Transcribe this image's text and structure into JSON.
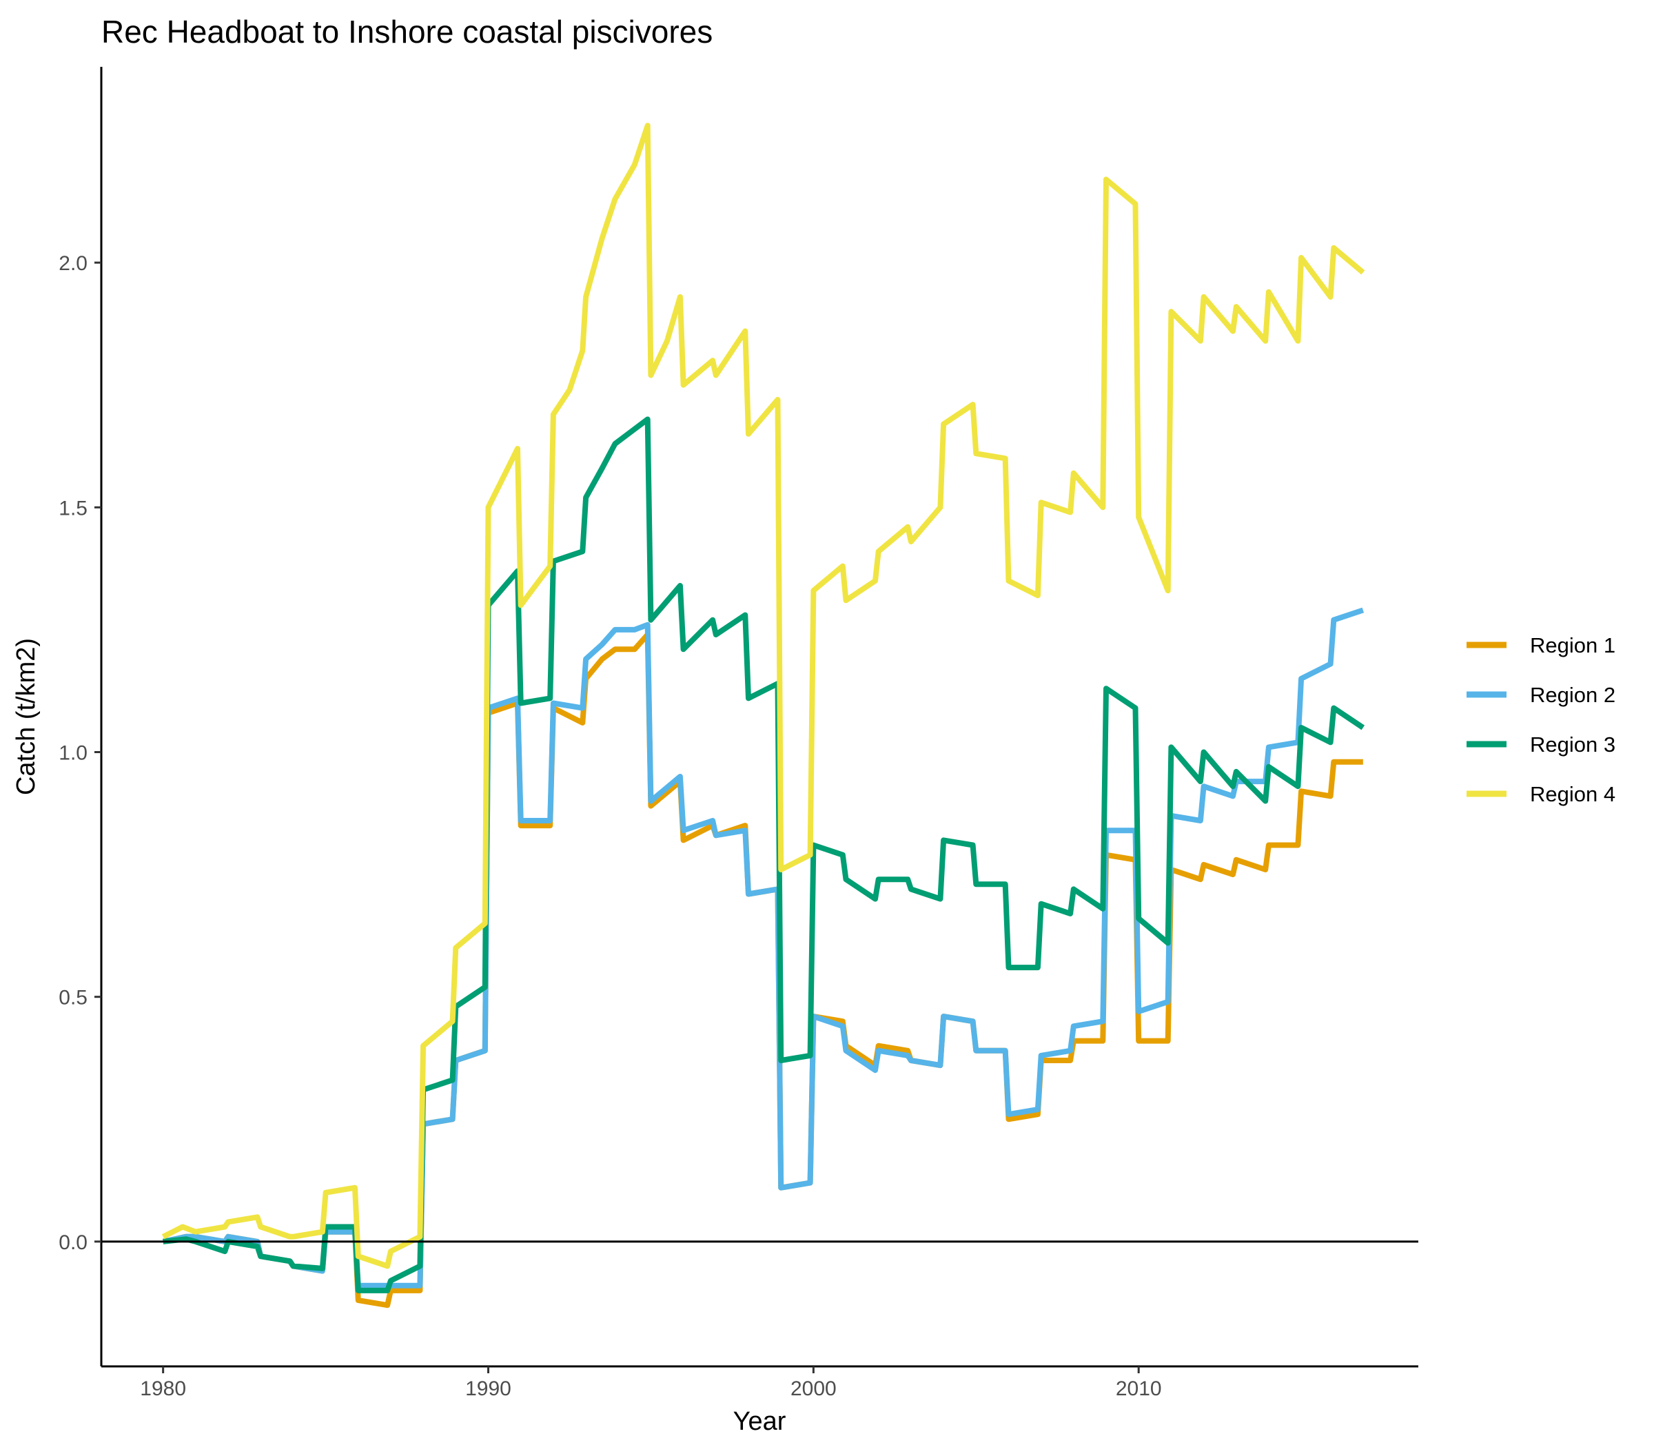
{
  "chart_data": {
    "type": "line",
    "title": "Rec Headboat to Inshore coastal piscivores",
    "xlabel": "Year",
    "ylabel": "Catch (t/km2)",
    "xlim": [
      1978.1,
      2018.6
    ],
    "ylim": [
      -0.255,
      2.4
    ],
    "x_ticks": [
      1980,
      1990,
      2000,
      2010
    ],
    "x_tick_labels": [
      "1980",
      "1990",
      "2000",
      "2010"
    ],
    "y_ticks": [
      0.0,
      0.5,
      1.0,
      1.5,
      2.0
    ],
    "y_tick_labels": [
      "0.0",
      "0.5",
      "1.0",
      "1.5",
      "2.0"
    ],
    "zero_line": true,
    "grid": false,
    "legend_position": "right",
    "series": [
      {
        "name": "Region 1",
        "color": "#E69F00",
        "points": [
          [
            1980.0,
            0.0
          ],
          [
            1980.7,
            0.01
          ],
          [
            1981.0,
            0.01
          ],
          [
            1981.9,
            0.0
          ],
          [
            1982.0,
            0.01
          ],
          [
            1982.9,
            0.0
          ],
          [
            1983.0,
            -0.03
          ],
          [
            1983.9,
            -0.04
          ],
          [
            1984.0,
            -0.05
          ],
          [
            1984.9,
            -0.06
          ],
          [
            1985.0,
            0.02
          ],
          [
            1985.9,
            0.02
          ],
          [
            1986.0,
            -0.12
          ],
          [
            1986.9,
            -0.13
          ],
          [
            1987.0,
            -0.1
          ],
          [
            1987.9,
            -0.1
          ],
          [
            1988.0,
            0.24
          ],
          [
            1988.9,
            0.25
          ],
          [
            1989.0,
            0.37
          ],
          [
            1989.9,
            0.39
          ],
          [
            1990.0,
            1.08
          ],
          [
            1990.9,
            1.1
          ],
          [
            1991.0,
            0.85
          ],
          [
            1991.9,
            0.85
          ],
          [
            1992.0,
            1.09
          ],
          [
            1992.9,
            1.06
          ],
          [
            1993.0,
            1.15
          ],
          [
            1993.5,
            1.19
          ],
          [
            1993.9,
            1.21
          ],
          [
            1994.5,
            1.21
          ],
          [
            1994.9,
            1.24
          ],
          [
            1995.0,
            0.89
          ],
          [
            1995.9,
            0.94
          ],
          [
            1996.0,
            0.82
          ],
          [
            1996.9,
            0.85
          ],
          [
            1997.0,
            0.83
          ],
          [
            1997.9,
            0.85
          ],
          [
            1998.0,
            0.71
          ],
          [
            1998.9,
            0.72
          ],
          [
            1999.0,
            0.11
          ],
          [
            1999.9,
            0.12
          ],
          [
            2000.0,
            0.46
          ],
          [
            2000.9,
            0.45
          ],
          [
            2001.0,
            0.4
          ],
          [
            2001.9,
            0.36
          ],
          [
            2002.0,
            0.4
          ],
          [
            2002.9,
            0.39
          ],
          [
            2003.0,
            0.37
          ],
          [
            2003.9,
            0.36
          ],
          [
            2004.0,
            0.46
          ],
          [
            2004.9,
            0.45
          ],
          [
            2005.0,
            0.39
          ],
          [
            2005.9,
            0.39
          ],
          [
            2006.0,
            0.25
          ],
          [
            2006.9,
            0.26
          ],
          [
            2007.0,
            0.37
          ],
          [
            2007.9,
            0.37
          ],
          [
            2008.0,
            0.41
          ],
          [
            2008.9,
            0.41
          ],
          [
            2009.0,
            0.79
          ],
          [
            2009.9,
            0.78
          ],
          [
            2010.0,
            0.41
          ],
          [
            2010.9,
            0.41
          ],
          [
            2011.0,
            0.76
          ],
          [
            2011.9,
            0.74
          ],
          [
            2012.0,
            0.77
          ],
          [
            2012.9,
            0.75
          ],
          [
            2013.0,
            0.78
          ],
          [
            2013.9,
            0.76
          ],
          [
            2014.0,
            0.81
          ],
          [
            2014.9,
            0.81
          ],
          [
            2015.0,
            0.92
          ],
          [
            2015.9,
            0.91
          ],
          [
            2016.0,
            0.98
          ],
          [
            2016.9,
            0.98
          ]
        ]
      },
      {
        "name": "Region 2",
        "color": "#56B4E9",
        "points": [
          [
            1980.0,
            0.0
          ],
          [
            1980.7,
            0.01
          ],
          [
            1981.0,
            0.01
          ],
          [
            1981.9,
            0.0
          ],
          [
            1982.0,
            0.01
          ],
          [
            1982.9,
            0.0
          ],
          [
            1983.0,
            -0.03
          ],
          [
            1983.9,
            -0.04
          ],
          [
            1984.0,
            -0.05
          ],
          [
            1984.9,
            -0.06
          ],
          [
            1985.0,
            0.02
          ],
          [
            1985.9,
            0.02
          ],
          [
            1986.0,
            -0.09
          ],
          [
            1986.9,
            -0.09
          ],
          [
            1987.0,
            -0.09
          ],
          [
            1987.9,
            -0.09
          ],
          [
            1988.0,
            0.24
          ],
          [
            1988.9,
            0.25
          ],
          [
            1989.0,
            0.37
          ],
          [
            1989.9,
            0.39
          ],
          [
            1990.0,
            1.09
          ],
          [
            1990.9,
            1.11
          ],
          [
            1991.0,
            0.86
          ],
          [
            1991.9,
            0.86
          ],
          [
            1992.0,
            1.1
          ],
          [
            1992.9,
            1.09
          ],
          [
            1993.0,
            1.19
          ],
          [
            1993.5,
            1.22
          ],
          [
            1993.9,
            1.25
          ],
          [
            1994.5,
            1.25
          ],
          [
            1994.9,
            1.26
          ],
          [
            1995.0,
            0.9
          ],
          [
            1995.9,
            0.95
          ],
          [
            1996.0,
            0.84
          ],
          [
            1996.9,
            0.86
          ],
          [
            1997.0,
            0.83
          ],
          [
            1997.9,
            0.84
          ],
          [
            1998.0,
            0.71
          ],
          [
            1998.9,
            0.72
          ],
          [
            1999.0,
            0.11
          ],
          [
            1999.9,
            0.12
          ],
          [
            2000.0,
            0.46
          ],
          [
            2000.9,
            0.44
          ],
          [
            2001.0,
            0.39
          ],
          [
            2001.9,
            0.35
          ],
          [
            2002.0,
            0.39
          ],
          [
            2002.9,
            0.38
          ],
          [
            2003.0,
            0.37
          ],
          [
            2003.9,
            0.36
          ],
          [
            2004.0,
            0.46
          ],
          [
            2004.9,
            0.45
          ],
          [
            2005.0,
            0.39
          ],
          [
            2005.9,
            0.39
          ],
          [
            2006.0,
            0.26
          ],
          [
            2006.9,
            0.27
          ],
          [
            2007.0,
            0.38
          ],
          [
            2007.9,
            0.39
          ],
          [
            2008.0,
            0.44
          ],
          [
            2008.9,
            0.45
          ],
          [
            2009.0,
            0.84
          ],
          [
            2009.9,
            0.84
          ],
          [
            2010.0,
            0.47
          ],
          [
            2010.9,
            0.49
          ],
          [
            2011.0,
            0.87
          ],
          [
            2011.9,
            0.86
          ],
          [
            2012.0,
            0.93
          ],
          [
            2012.9,
            0.91
          ],
          [
            2013.0,
            0.94
          ],
          [
            2013.9,
            0.94
          ],
          [
            2014.0,
            1.01
          ],
          [
            2014.9,
            1.02
          ],
          [
            2015.0,
            1.15
          ],
          [
            2015.9,
            1.18
          ],
          [
            2016.0,
            1.27
          ],
          [
            2016.9,
            1.29
          ]
        ]
      },
      {
        "name": "Region 3",
        "color": "#009E73",
        "points": [
          [
            1980.0,
            0.0
          ],
          [
            1980.7,
            0.005
          ],
          [
            1981.0,
            0.0
          ],
          [
            1981.9,
            -0.02
          ],
          [
            1982.0,
            0.0
          ],
          [
            1982.9,
            -0.01
          ],
          [
            1983.0,
            -0.03
          ],
          [
            1983.9,
            -0.04
          ],
          [
            1984.0,
            -0.05
          ],
          [
            1984.9,
            -0.055
          ],
          [
            1985.0,
            0.03
          ],
          [
            1985.9,
            0.03
          ],
          [
            1986.0,
            -0.1
          ],
          [
            1986.9,
            -0.1
          ],
          [
            1987.0,
            -0.08
          ],
          [
            1987.9,
            -0.05
          ],
          [
            1988.0,
            0.31
          ],
          [
            1988.9,
            0.33
          ],
          [
            1989.0,
            0.48
          ],
          [
            1989.9,
            0.52
          ],
          [
            1990.0,
            1.3
          ],
          [
            1990.9,
            1.37
          ],
          [
            1991.0,
            1.1
          ],
          [
            1991.9,
            1.11
          ],
          [
            1992.0,
            1.39
          ],
          [
            1992.9,
            1.41
          ],
          [
            1993.0,
            1.52
          ],
          [
            1993.5,
            1.58
          ],
          [
            1993.9,
            1.63
          ],
          [
            1994.5,
            1.66
          ],
          [
            1994.9,
            1.68
          ],
          [
            1995.0,
            1.27
          ],
          [
            1995.9,
            1.34
          ],
          [
            1996.0,
            1.21
          ],
          [
            1996.9,
            1.27
          ],
          [
            1997.0,
            1.24
          ],
          [
            1997.9,
            1.28
          ],
          [
            1998.0,
            1.11
          ],
          [
            1998.9,
            1.14
          ],
          [
            1999.0,
            0.37
          ],
          [
            1999.9,
            0.38
          ],
          [
            2000.0,
            0.81
          ],
          [
            2000.9,
            0.79
          ],
          [
            2001.0,
            0.74
          ],
          [
            2001.9,
            0.7
          ],
          [
            2002.0,
            0.74
          ],
          [
            2002.9,
            0.74
          ],
          [
            2003.0,
            0.72
          ],
          [
            2003.9,
            0.7
          ],
          [
            2004.0,
            0.82
          ],
          [
            2004.9,
            0.81
          ],
          [
            2005.0,
            0.73
          ],
          [
            2005.9,
            0.73
          ],
          [
            2006.0,
            0.56
          ],
          [
            2006.9,
            0.56
          ],
          [
            2007.0,
            0.69
          ],
          [
            2007.9,
            0.67
          ],
          [
            2008.0,
            0.72
          ],
          [
            2008.9,
            0.68
          ],
          [
            2009.0,
            1.13
          ],
          [
            2009.9,
            1.09
          ],
          [
            2010.0,
            0.66
          ],
          [
            2010.9,
            0.61
          ],
          [
            2011.0,
            1.01
          ],
          [
            2011.9,
            0.94
          ],
          [
            2012.0,
            1.0
          ],
          [
            2012.9,
            0.93
          ],
          [
            2013.0,
            0.96
          ],
          [
            2013.9,
            0.9
          ],
          [
            2014.0,
            0.97
          ],
          [
            2014.9,
            0.93
          ],
          [
            2015.0,
            1.05
          ],
          [
            2015.9,
            1.02
          ],
          [
            2016.0,
            1.09
          ],
          [
            2016.9,
            1.05
          ]
        ]
      },
      {
        "name": "Region 4",
        "color": "#F0E442",
        "points": [
          [
            1980.0,
            0.01
          ],
          [
            1980.6,
            0.03
          ],
          [
            1981.0,
            0.02
          ],
          [
            1981.9,
            0.03
          ],
          [
            1982.0,
            0.04
          ],
          [
            1982.9,
            0.05
          ],
          [
            1983.0,
            0.03
          ],
          [
            1983.9,
            0.01
          ],
          [
            1984.0,
            0.01
          ],
          [
            1984.9,
            0.02
          ],
          [
            1985.0,
            0.1
          ],
          [
            1985.9,
            0.11
          ],
          [
            1986.0,
            -0.03
          ],
          [
            1986.9,
            -0.05
          ],
          [
            1987.0,
            -0.02
          ],
          [
            1987.9,
            0.01
          ],
          [
            1988.0,
            0.4
          ],
          [
            1988.9,
            0.45
          ],
          [
            1989.0,
            0.6
          ],
          [
            1989.9,
            0.65
          ],
          [
            1990.0,
            1.5
          ],
          [
            1990.9,
            1.62
          ],
          [
            1991.0,
            1.3
          ],
          [
            1991.9,
            1.38
          ],
          [
            1992.0,
            1.69
          ],
          [
            1992.5,
            1.74
          ],
          [
            1992.9,
            1.82
          ],
          [
            1993.0,
            1.93
          ],
          [
            1993.5,
            2.05
          ],
          [
            1993.9,
            2.13
          ],
          [
            1994.5,
            2.2
          ],
          [
            1994.9,
            2.28
          ],
          [
            1995.0,
            1.77
          ],
          [
            1995.5,
            1.84
          ],
          [
            1995.9,
            1.93
          ],
          [
            1996.0,
            1.75
          ],
          [
            1996.9,
            1.8
          ],
          [
            1997.0,
            1.77
          ],
          [
            1997.9,
            1.86
          ],
          [
            1998.0,
            1.65
          ],
          [
            1998.9,
            1.72
          ],
          [
            1999.0,
            0.76
          ],
          [
            1999.9,
            0.79
          ],
          [
            2000.0,
            1.33
          ],
          [
            2000.9,
            1.38
          ],
          [
            2001.0,
            1.31
          ],
          [
            2001.9,
            1.35
          ],
          [
            2002.0,
            1.41
          ],
          [
            2002.9,
            1.46
          ],
          [
            2003.0,
            1.43
          ],
          [
            2003.9,
            1.5
          ],
          [
            2004.0,
            1.67
          ],
          [
            2004.9,
            1.71
          ],
          [
            2005.0,
            1.61
          ],
          [
            2005.9,
            1.6
          ],
          [
            2006.0,
            1.35
          ],
          [
            2006.9,
            1.32
          ],
          [
            2007.0,
            1.51
          ],
          [
            2007.9,
            1.49
          ],
          [
            2008.0,
            1.57
          ],
          [
            2008.9,
            1.5
          ],
          [
            2009.0,
            2.17
          ],
          [
            2009.9,
            2.12
          ],
          [
            2010.0,
            1.48
          ],
          [
            2010.9,
            1.33
          ],
          [
            2011.0,
            1.9
          ],
          [
            2011.9,
            1.84
          ],
          [
            2012.0,
            1.93
          ],
          [
            2012.9,
            1.86
          ],
          [
            2013.0,
            1.91
          ],
          [
            2013.9,
            1.84
          ],
          [
            2014.0,
            1.94
          ],
          [
            2014.9,
            1.84
          ],
          [
            2015.0,
            2.01
          ],
          [
            2015.9,
            1.93
          ],
          [
            2016.0,
            2.03
          ],
          [
            2016.9,
            1.98
          ]
        ]
      }
    ]
  }
}
